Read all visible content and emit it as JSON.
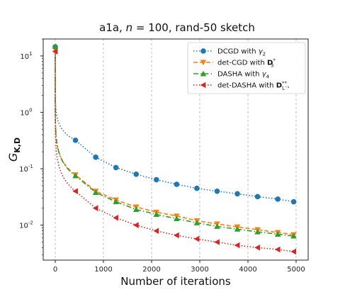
{
  "chart_data": {
    "type": "line",
    "title": "a1a, n = 100, rand-50 sketch",
    "title_parts": {
      "prefix": "a1a, ",
      "var": "n",
      "suffix": " = 100, rand-50 sketch"
    },
    "xlabel": "Number of iterations",
    "ylabel": {
      "main": "G",
      "sub": "K,D"
    },
    "xlim": [
      -250,
      5250
    ],
    "ylim": [
      0.0024,
      20
    ],
    "yscale": "log",
    "xticks": [
      0,
      1000,
      2000,
      3000,
      4000,
      5000
    ],
    "xtick_labels": [
      "0",
      "1000",
      "2000",
      "3000",
      "4000",
      "5000"
    ],
    "yticks": [
      0.01,
      0.1,
      1,
      10
    ],
    "ytick_labels": [
      {
        "base": "10",
        "exp": "-2"
      },
      {
        "base": "10",
        "exp": "-1"
      },
      {
        "base": "10",
        "exp": "0"
      },
      {
        "base": "10",
        "exp": "1"
      }
    ],
    "grid": "x-dashed",
    "legend_position": "top-right",
    "series": [
      {
        "name": "DCGD with γ2",
        "legend": {
          "text": "DCGD with ",
          "math": "γ",
          "sub": "2"
        },
        "color": "#1f77b4",
        "linestyle": "dotted",
        "marker": "circle",
        "x": [
          0,
          420,
          840,
          1260,
          1680,
          2100,
          2520,
          2940,
          3360,
          3780,
          4200,
          4620,
          4950
        ],
        "y": [
          14.5,
          0.32,
          0.16,
          0.105,
          0.08,
          0.064,
          0.053,
          0.045,
          0.04,
          0.036,
          0.032,
          0.029,
          0.026
        ]
      },
      {
        "name": "det-CGD with D3*",
        "legend": {
          "text": "det-CGD with ",
          "math": "D",
          "sub": "3",
          "sup": "*"
        },
        "color": "#ff7f0e",
        "linestyle": "dashed",
        "marker": "triangle-down",
        "x": [
          0,
          420,
          840,
          1260,
          1680,
          2100,
          2520,
          2940,
          3360,
          3780,
          4200,
          4620,
          4950
        ],
        "y": [
          13.0,
          0.078,
          0.04,
          0.028,
          0.021,
          0.017,
          0.0145,
          0.012,
          0.0105,
          0.0093,
          0.0083,
          0.0074,
          0.0068
        ]
      },
      {
        "name": "DASHA with γ4",
        "legend": {
          "text": "DASHA with ",
          "math": "γ",
          "sub": "4"
        },
        "color": "#2ca02c",
        "linestyle": "dashdot",
        "marker": "triangle-up",
        "x": [
          0,
          420,
          840,
          1260,
          1680,
          2100,
          2520,
          2940,
          3360,
          3780,
          4200,
          4620,
          4950
        ],
        "y": [
          14.8,
          0.075,
          0.038,
          0.026,
          0.019,
          0.0155,
          0.013,
          0.011,
          0.0095,
          0.0085,
          0.0076,
          0.0069,
          0.0064
        ]
      },
      {
        "name": "det-DASHA with D**L-1",
        "legend": {
          "text": "det-DASHA with ",
          "math": "D",
          "sub": "L⁻¹",
          "sup": "**"
        },
        "color": "#d62728",
        "linestyle": "dotted",
        "marker": "triangle-left",
        "x": [
          0,
          420,
          840,
          1260,
          1680,
          2100,
          2520,
          2940,
          3360,
          3780,
          4200,
          4620,
          4950
        ],
        "y": [
          12.0,
          0.04,
          0.02,
          0.0135,
          0.01,
          0.0079,
          0.0066,
          0.0057,
          0.005,
          0.0044,
          0.004,
          0.0037,
          0.0034
        ]
      }
    ]
  }
}
